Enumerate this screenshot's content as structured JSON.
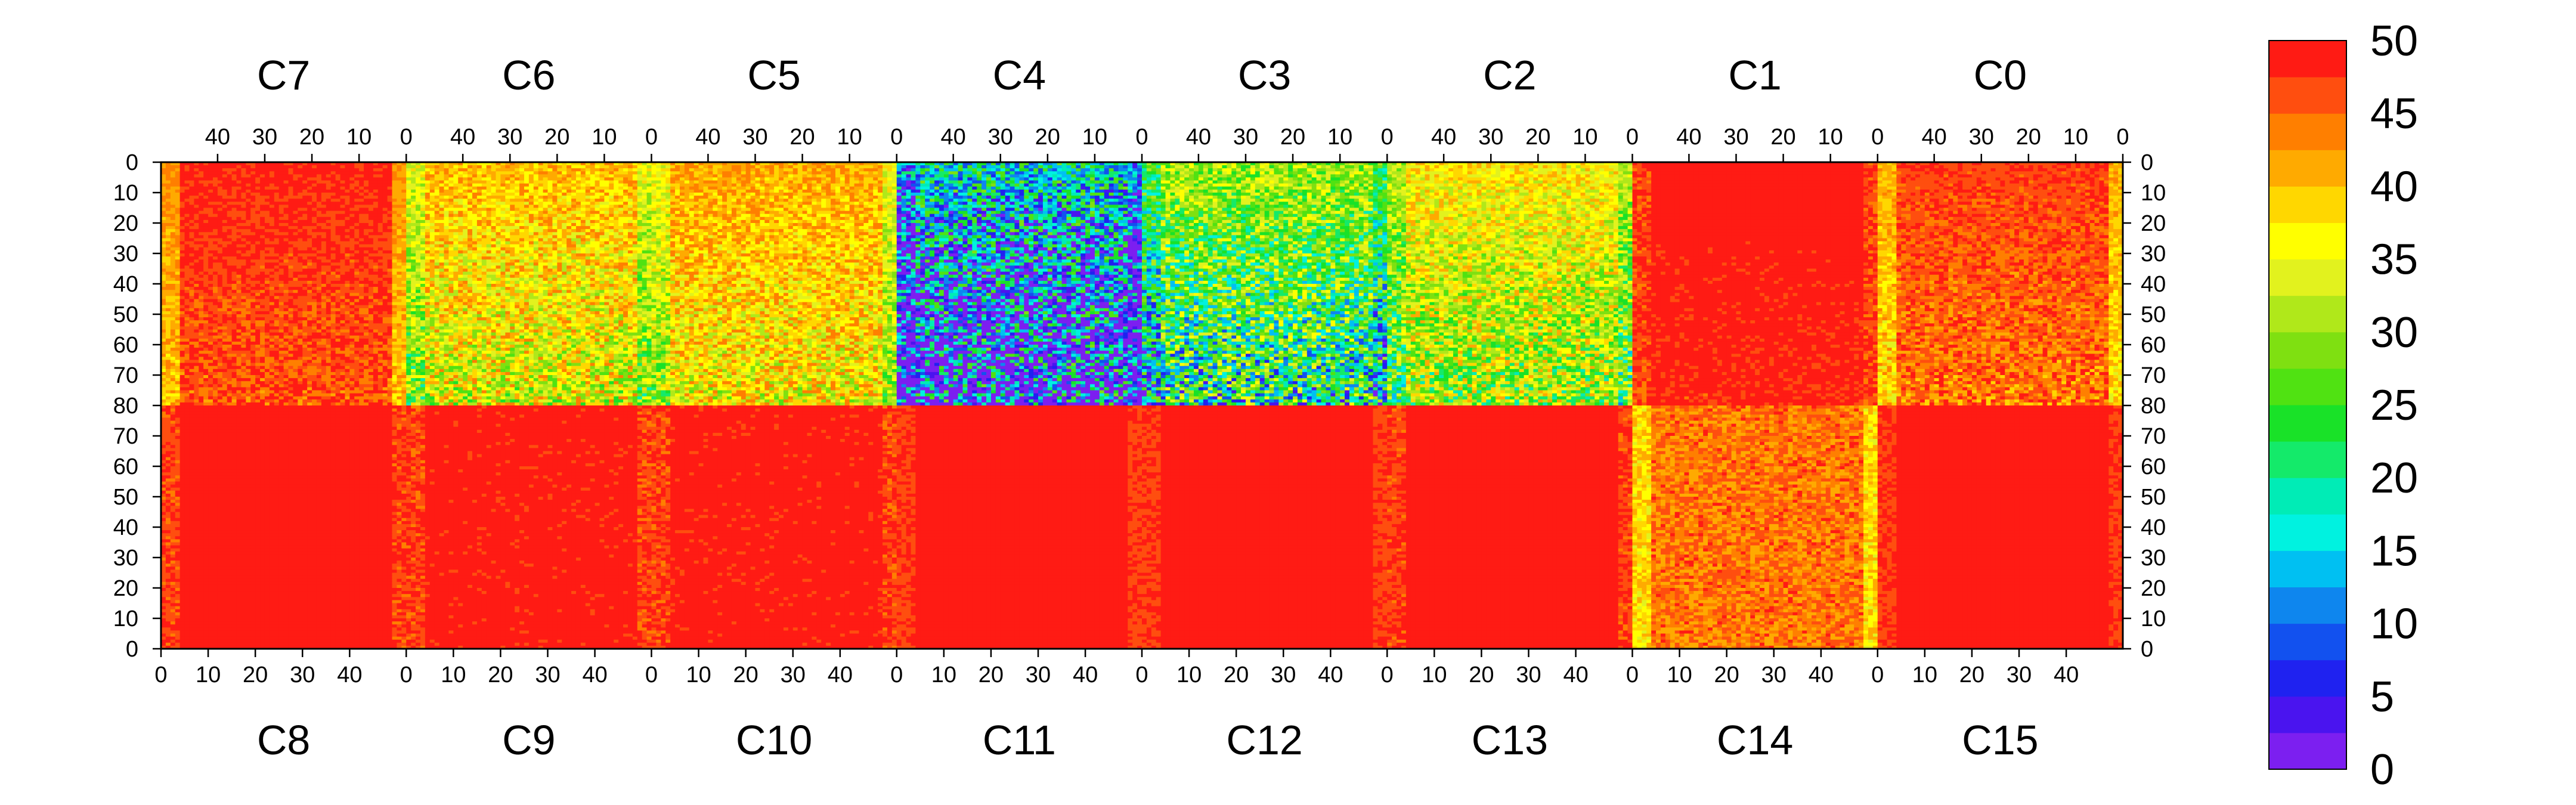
{
  "chart_data": {
    "type": "heatmap",
    "title": "",
    "grid": false,
    "legend": "colorbar-right",
    "top_row_chips": [
      "C7",
      "C6",
      "C5",
      "C4",
      "C3",
      "C2",
      "C1",
      "C0"
    ],
    "bottom_row_chips": [
      "C8",
      "C9",
      "C10",
      "C11",
      "C12",
      "C13",
      "C14",
      "C15"
    ],
    "columns_per_chip": 52,
    "rows_per_chip": 80,
    "top_x_ticks": [
      40,
      30,
      20,
      10,
      0
    ],
    "bottom_x_ticks": [
      0,
      10,
      20,
      30,
      40
    ],
    "top_y_ticks": [
      0,
      10,
      20,
      30,
      40,
      50,
      60,
      70,
      80
    ],
    "bottom_y_ticks": [
      70,
      60,
      50,
      40,
      30,
      20,
      10,
      0
    ],
    "xlim": [
      0,
      52
    ],
    "ylim": [
      0,
      80
    ],
    "zlim": [
      0,
      50
    ],
    "colorbar_ticks": [
      0,
      5,
      10,
      15,
      20,
      25,
      30,
      35,
      40,
      45,
      50
    ],
    "colorbar_colors": [
      "#7c1ff0",
      "#4a14ef",
      "#1f22f0",
      "#1251ef",
      "#0e86ee",
      "#00c0f2",
      "#00f2e0",
      "#00ecb6",
      "#14ea6a",
      "#19e228",
      "#50e212",
      "#7fe011",
      "#b0e81a",
      "#e2f21e",
      "#ffff00",
      "#ffd700",
      "#ffaa00",
      "#ff7f00",
      "#ff4e0f",
      "#ff1b14"
    ],
    "chip_mean_levels": {
      "C7": 46,
      "C6": 40,
      "C5": 41,
      "C4": 24,
      "C3": 33,
      "C2": 38,
      "C1": 47,
      "C0": 45,
      "C8": 48,
      "C9": 47,
      "C10": 47,
      "C11": 49,
      "C12": 49,
      "C13": 48,
      "C14": 44,
      "C15": 49
    }
  }
}
